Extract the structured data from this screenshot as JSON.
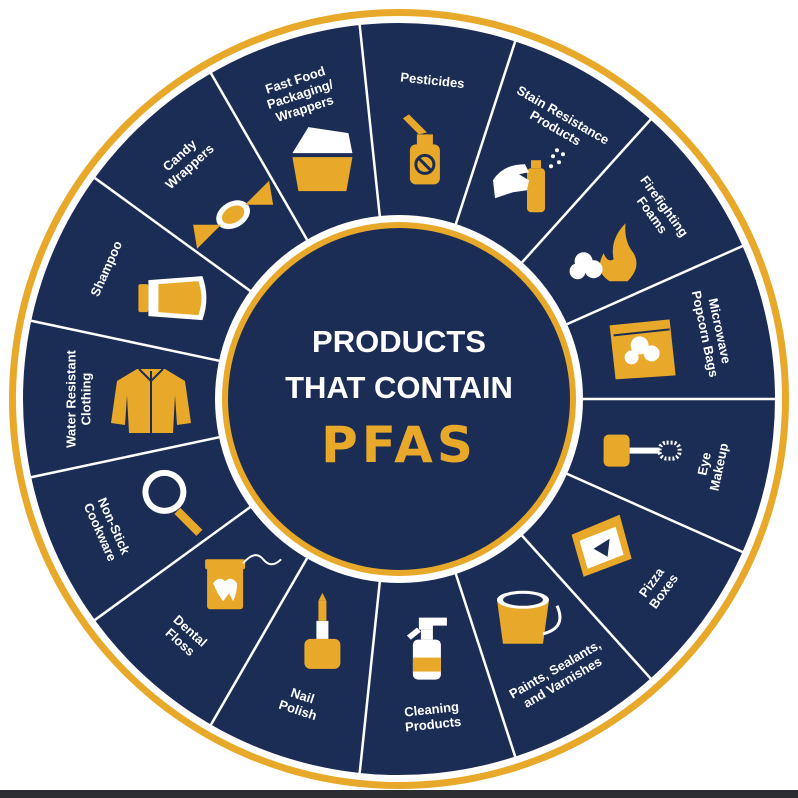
{
  "colors": {
    "navy": "#1c2d55",
    "gold": "#e8a92a",
    "white": "#ffffff",
    "divider": "#ffffff"
  },
  "title": {
    "line1": "PRODUCTS",
    "line2": "THAT CONTAIN",
    "line3": "PFAS"
  },
  "segments": [
    {
      "id": "pesticides",
      "label": [
        "Pesticides"
      ],
      "icon": "spray-bottle-icon"
    },
    {
      "id": "stain-resistance-products",
      "label": [
        "Stain Resistance",
        "Products"
      ],
      "icon": "hand-spray-can-icon"
    },
    {
      "id": "firefighting-foams",
      "label": [
        "Firefighting",
        "Foams"
      ],
      "icon": "fire-foam-icon"
    },
    {
      "id": "microwave-popcorn-bags",
      "label": [
        "Microwave",
        "Popcorn Bags"
      ],
      "icon": "popcorn-bag-icon"
    },
    {
      "id": "eye-makeup",
      "label": [
        "Eye",
        "Makeup"
      ],
      "icon": "mascara-icon"
    },
    {
      "id": "pizza-boxes",
      "label": [
        "Pizza",
        "Boxes"
      ],
      "icon": "pizza-box-icon"
    },
    {
      "id": "paints-sealants-varnishes",
      "label": [
        "Paints, Sealants,",
        "and Varnishes"
      ],
      "icon": "paint-bucket-icon"
    },
    {
      "id": "cleaning-products",
      "label": [
        "Cleaning",
        "Products"
      ],
      "icon": "trigger-spray-bottle-icon"
    },
    {
      "id": "nail-polish",
      "label": [
        "Nail",
        "Polish"
      ],
      "icon": "nail-polish-icon"
    },
    {
      "id": "dental-floss",
      "label": [
        "Dental",
        "Floss"
      ],
      "icon": "dental-floss-icon"
    },
    {
      "id": "non-stick-cookware",
      "label": [
        "Non-Stick",
        "Cookware"
      ],
      "icon": "frying-pan-icon"
    },
    {
      "id": "water-resistant-clothing",
      "label": [
        "Water Resistant",
        "Clothing"
      ],
      "icon": "jacket-icon"
    },
    {
      "id": "shampoo",
      "label": [
        "Shampoo"
      ],
      "icon": "shampoo-bottle-icon"
    },
    {
      "id": "candy-wrappers",
      "label": [
        "Candy",
        "Wrappers"
      ],
      "icon": "wrapped-candy-icon"
    },
    {
      "id": "fast-food-packaging-wrappers",
      "label": [
        "Fast Food",
        "Packaging/",
        "Wrappers"
      ],
      "icon": "takeout-box-icon"
    }
  ]
}
